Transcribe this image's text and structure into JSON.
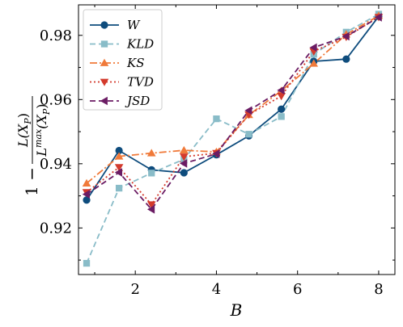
{
  "chart_data": {
    "type": "line",
    "xlabel": "B",
    "ylabel": {
      "prefix": "1 −",
      "numerator": "L(X",
      "numerator_sub": "P",
      "numerator_end": ")",
      "denominator": "L",
      "denominator_sup": "max",
      "denominator_mid": "(X",
      "denominator_sub": "P",
      "denominator_end": ")"
    },
    "xlim": [
      0.6,
      8.4
    ],
    "ylim": [
      0.9055,
      0.9895
    ],
    "xticks": [
      2,
      4,
      6,
      8
    ],
    "xtick_labels": [
      "2",
      "4",
      "6",
      "8"
    ],
    "yticks": [
      0.92,
      0.94,
      0.96,
      0.98
    ],
    "ytick_labels": [
      "0.92",
      "0.94",
      "0.96",
      "0.98"
    ],
    "grid": false,
    "legend_position": "top-left",
    "x": [
      0.8,
      1.6,
      2.4,
      3.2,
      4.0,
      4.8,
      5.6,
      6.4,
      7.2,
      8.0
    ],
    "series": [
      {
        "name": "W",
        "color": "#0e4c7d",
        "linestyle": "solid",
        "marker": "circle",
        "values": [
          0.9287,
          0.9441,
          0.9381,
          0.9372,
          0.9428,
          0.9487,
          0.957,
          0.9719,
          0.9726,
          0.9859
        ]
      },
      {
        "name": "KLD",
        "color": "#89bcc8",
        "linestyle": "dashed",
        "marker": "square",
        "values": [
          0.909,
          0.9324,
          0.9371,
          0.9414,
          0.954,
          0.9492,
          0.9547,
          0.9741,
          0.981,
          0.9866
        ]
      },
      {
        "name": "KS",
        "color": "#f07a3a",
        "linestyle": "dashdot",
        "marker": "triangle-up",
        "values": [
          0.9339,
          0.9423,
          0.9433,
          0.9442,
          0.9437,
          0.9552,
          0.9627,
          0.9712,
          0.9803,
          0.9861
        ]
      },
      {
        "name": "TVD",
        "color": "#d33a2c",
        "linestyle": "dotted",
        "marker": "triangle-down",
        "values": [
          0.9311,
          0.9389,
          0.9273,
          0.9422,
          0.9433,
          0.9553,
          0.9611,
          0.975,
          0.9795,
          0.9857
        ]
      },
      {
        "name": "JSD",
        "color": "#6b1c64",
        "linestyle": "dashed",
        "marker": "triangle-left",
        "values": [
          0.9305,
          0.9373,
          0.9258,
          0.9401,
          0.9431,
          0.9566,
          0.9629,
          0.9762,
          0.9797,
          0.9856
        ]
      }
    ]
  }
}
